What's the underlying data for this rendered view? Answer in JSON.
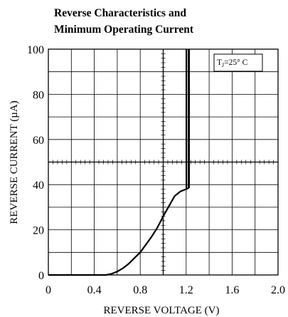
{
  "chart_data": {
    "type": "line",
    "title_lines": [
      "Reverse Characteristics and",
      "Minimum Operating Current"
    ],
    "xlabel": "REVERSE VOLTAGE (V)",
    "ylabel": "REVERSE CURRENT (µA)",
    "xlim": [
      0,
      2.0
    ],
    "ylim": [
      0,
      100
    ],
    "x_ticks": [
      "0",
      "0.4",
      "0.8",
      "1.2",
      "1.6",
      "2.0"
    ],
    "y_ticks": [
      "0",
      "20",
      "40",
      "60",
      "80",
      "100"
    ],
    "grid": true,
    "annotation": {
      "text_main": "T",
      "text_sub": "J",
      "text_rest": "=25° C",
      "placement": "top-right"
    },
    "series": [
      {
        "x": [
          0,
          0.25,
          0.5,
          0.55,
          0.6,
          0.65,
          0.7,
          0.75,
          0.8,
          0.85,
          0.9,
          0.95,
          1.0,
          1.05,
          1.1,
          1.15,
          1.2,
          1.22,
          1.22,
          1.22
        ],
        "y": [
          0,
          0,
          0,
          0.5,
          1.5,
          3,
          5,
          7.5,
          10,
          13.5,
          17,
          21,
          26,
          30.5,
          35,
          37,
          38,
          38.5,
          60,
          100
        ]
      }
    ]
  }
}
